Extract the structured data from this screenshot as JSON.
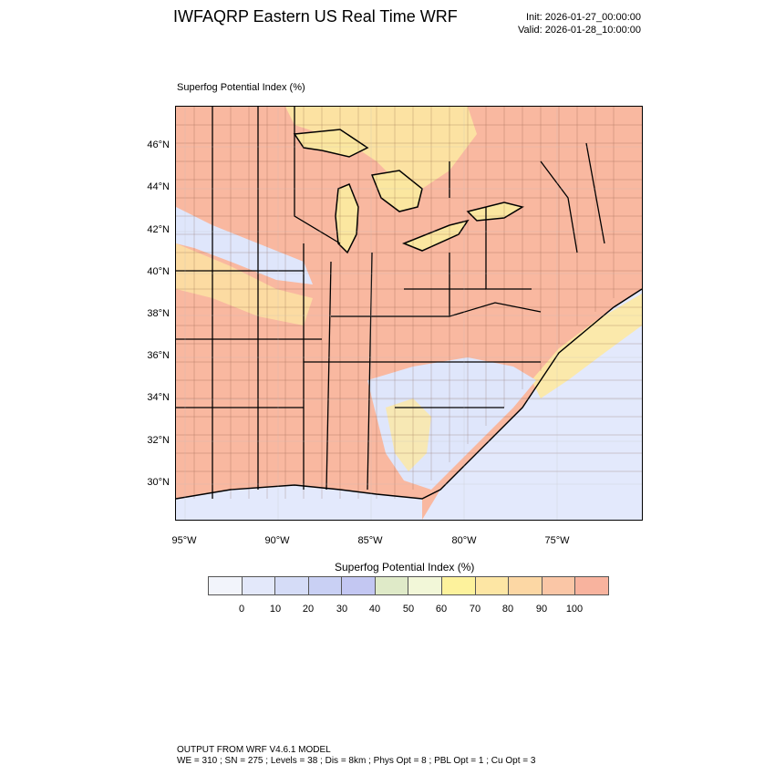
{
  "header": {
    "title": "IWFAQRP Eastern US Real Time WRF",
    "init": "Init: 2026-01-27_00:00:00",
    "valid": "Valid: 2026-01-28_10:00:00"
  },
  "field": {
    "label": "Superfog Potential Index   (%)"
  },
  "map": {
    "lat_labels": [
      "46°N",
      "44°N",
      "42°N",
      "40°N",
      "38°N",
      "36°N",
      "34°N",
      "32°N",
      "30°N"
    ],
    "lon_labels": [
      "95°W",
      "90°W",
      "85°W",
      "80°W",
      "75°W"
    ],
    "colors": {
      "high": "#f9b8a0",
      "mid": "#fde9a2",
      "low": "#dfe6fb",
      "water": "#e3e9fc",
      "canada": "#f8b39c"
    }
  },
  "colorbar": {
    "title": "Superfog Potential Index  (%)",
    "labels": [
      "0",
      "10",
      "20",
      "30",
      "40",
      "50",
      "60",
      "70",
      "80",
      "90",
      "100"
    ],
    "colors": [
      "#f2f4fb",
      "#e3e8fa",
      "#d5dcf7",
      "#c9d0f4",
      "#c3c7f2",
      "#dfeac8",
      "#f2f7d8",
      "#fdf29c",
      "#fde6a4",
      "#fcd7a4",
      "#fac6a6",
      "#f8b39e"
    ]
  },
  "footer": {
    "line1": "OUTPUT FROM WRF V4.6.1 MODEL",
    "line2": "WE = 310 ; SN = 275 ; Levels = 38 ; Dis = 8km ; Phys Opt = 8 ; PBL Opt = 1 ; Cu Opt = 3"
  }
}
